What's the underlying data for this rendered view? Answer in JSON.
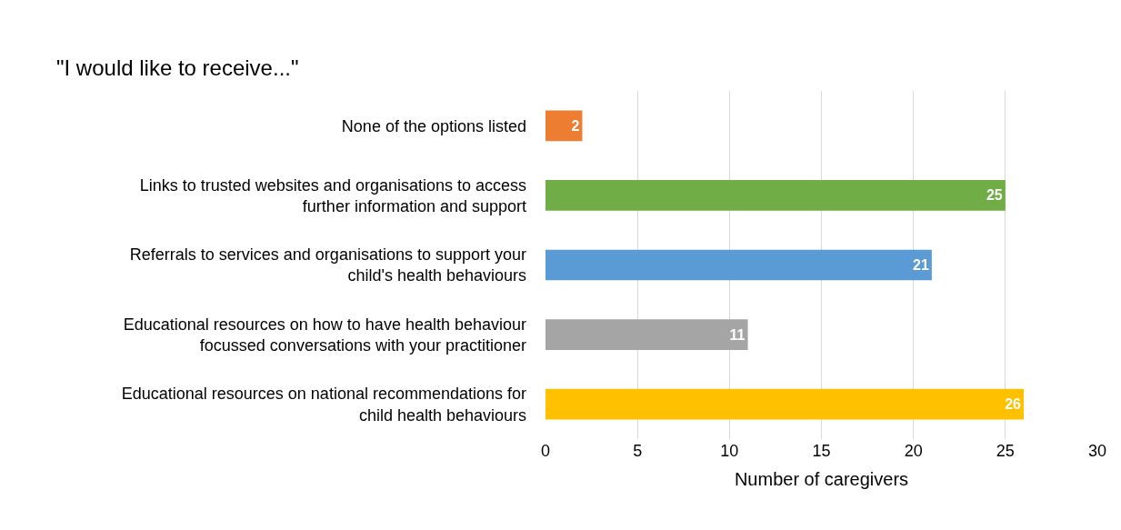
{
  "chart_data": {
    "type": "bar",
    "orientation": "horizontal",
    "title": "\"I would like to receive...\"",
    "xlabel": "Number of caregivers",
    "categories": [
      "None of the options listed",
      "Links to trusted websites and organisations to access further information and support",
      "Referrals to services and organisations to support your child's health behaviours",
      "Educational resources on how to have health behaviour focussed conversations with your practitioner",
      "Educational resources on national recommendations for child health behaviours"
    ],
    "values": [
      2,
      25,
      21,
      11,
      26
    ],
    "colors": [
      "#ed7d31",
      "#70ad47",
      "#5b9bd5",
      "#a5a5a5",
      "#ffc000"
    ],
    "xlim": [
      0,
      30
    ],
    "xticks": [
      0,
      5,
      10,
      15,
      20,
      25,
      30
    ],
    "grid": "x",
    "data_labels": true
  }
}
